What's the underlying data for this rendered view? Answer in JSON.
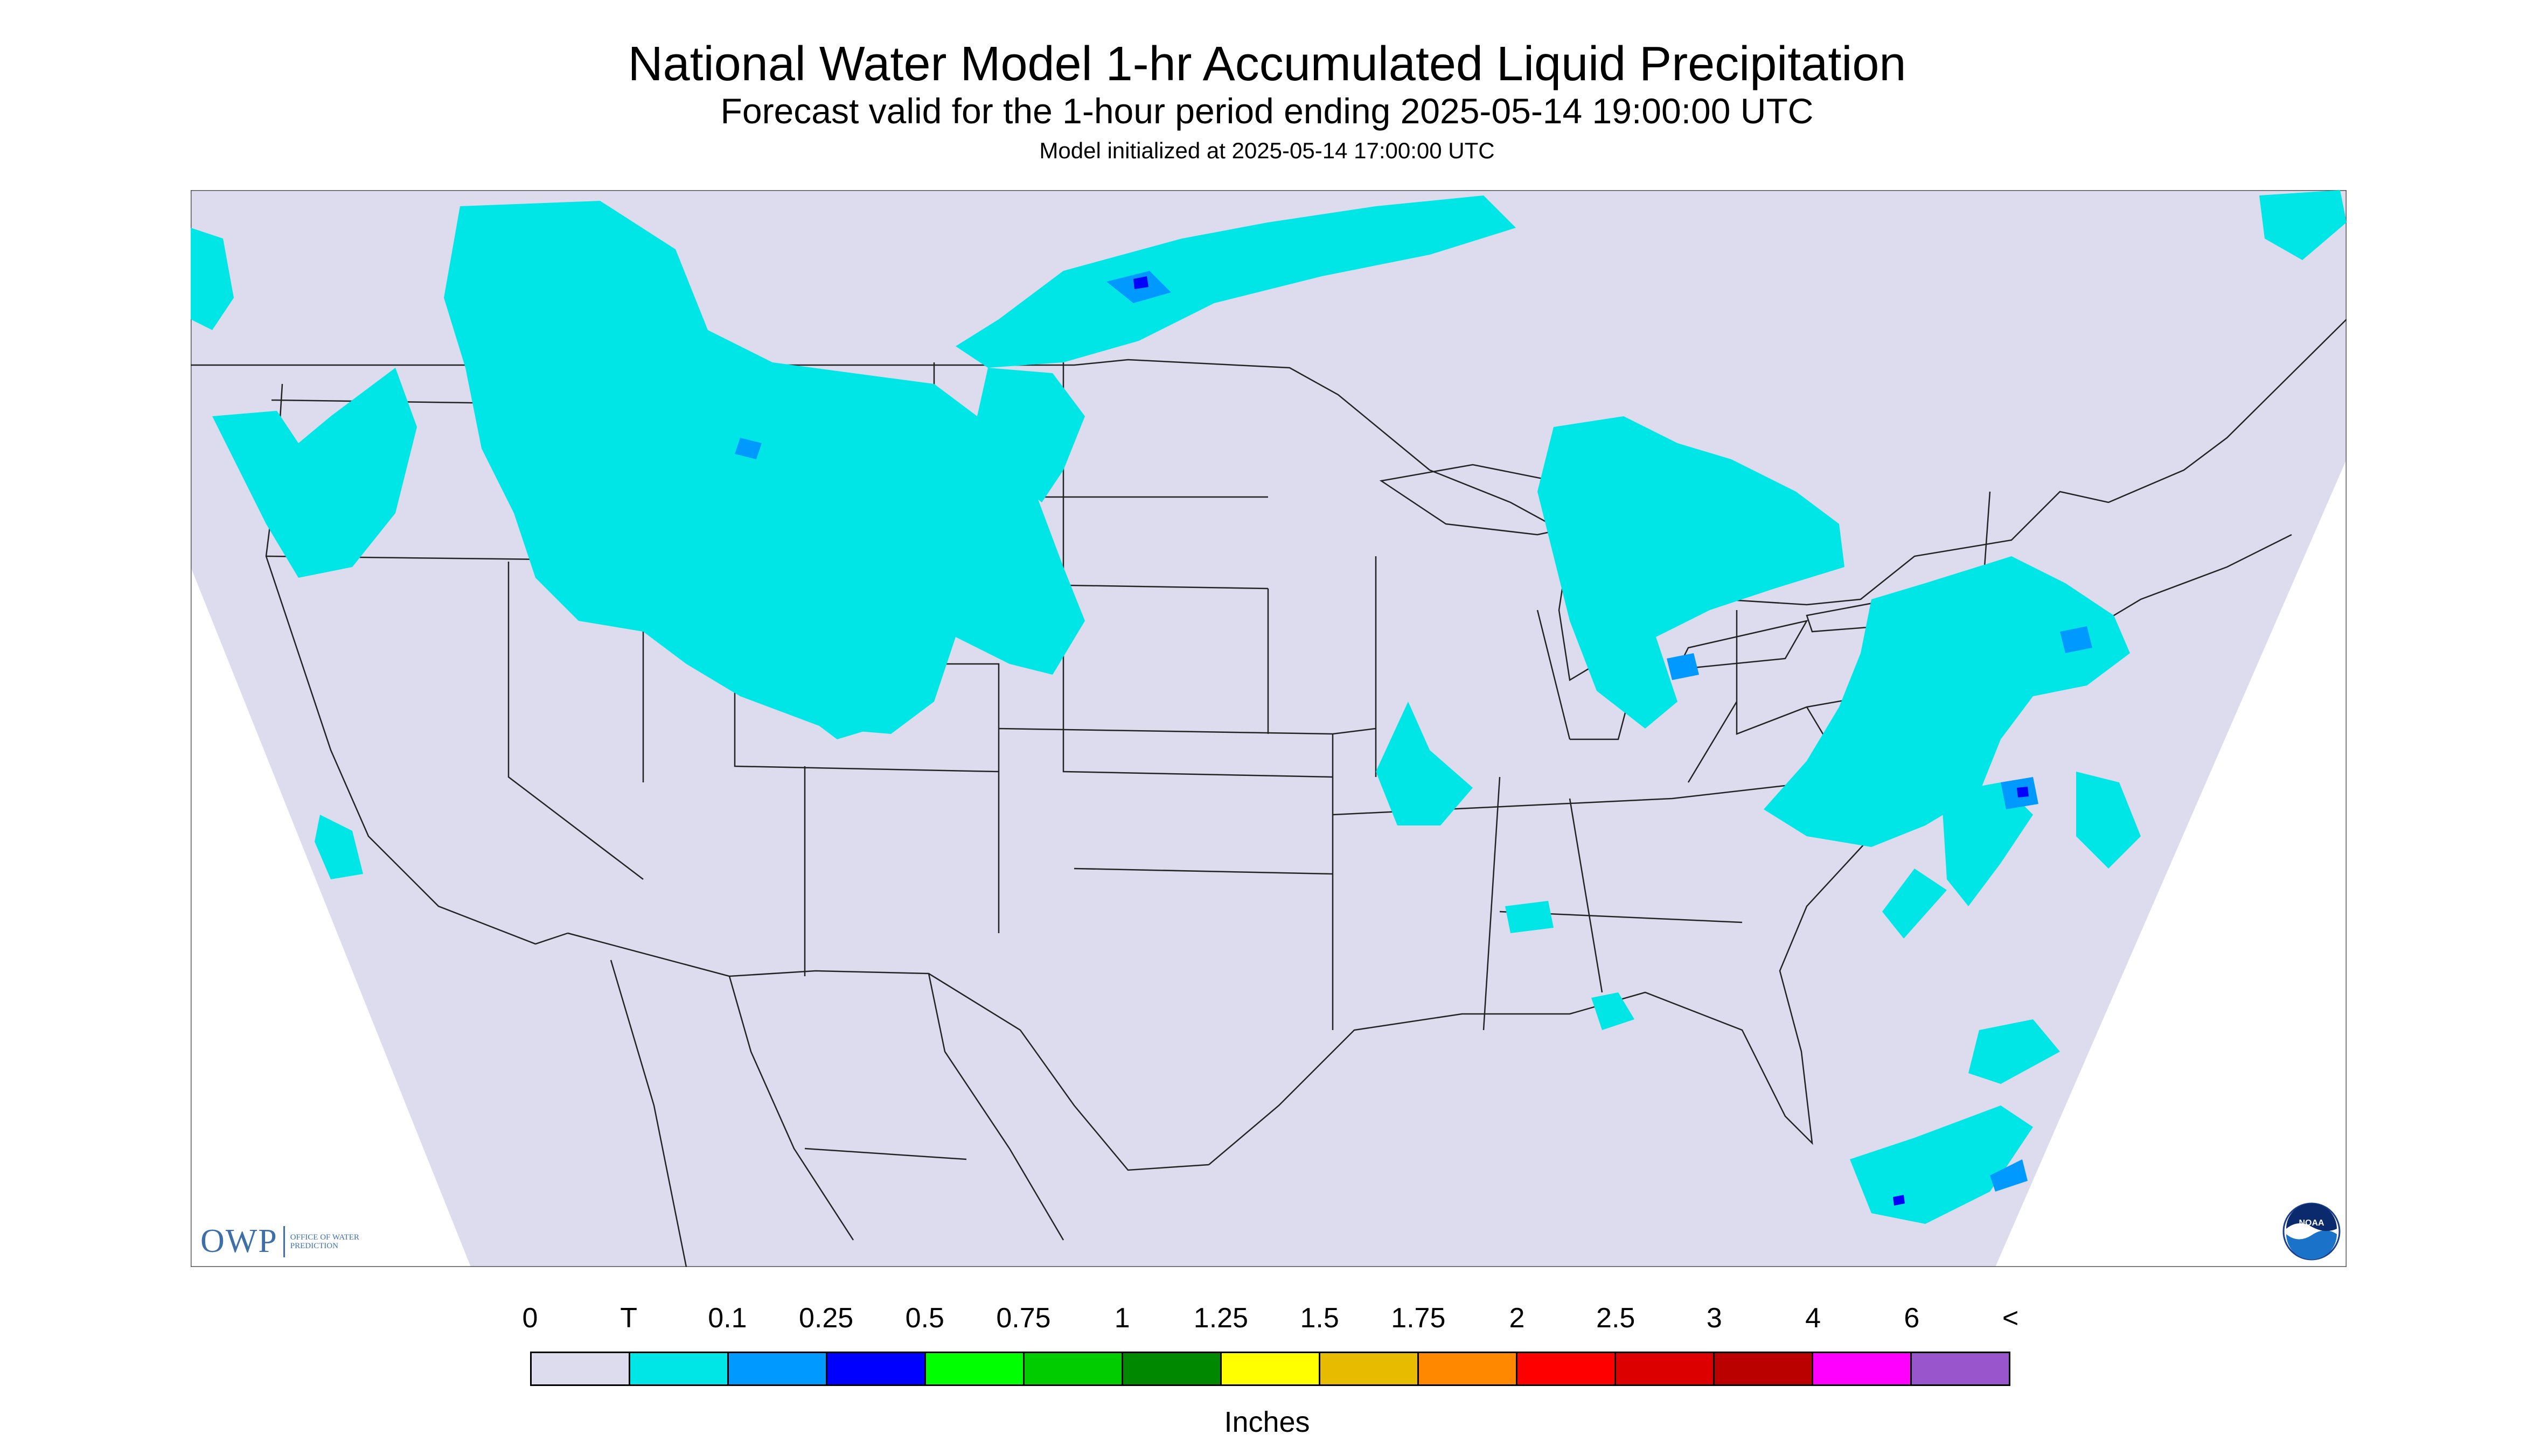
{
  "header": {
    "title": "National Water Model 1-hr Accumulated Liquid Precipitation",
    "subtitle": "Forecast valid for the 1-hour period ending 2025-05-14 19:00:00 UTC",
    "init": "Model initialized at 2025-05-14 17:00:00 UTC"
  },
  "colors": {
    "background": "#dcdcee",
    "land": "#dcdcee",
    "borders": "#222222",
    "trace": "#00e6e6",
    "light": "#0099ff",
    "moderate": "#0000ff"
  },
  "legend": {
    "units": "Inches",
    "ticks": [
      "0",
      "T",
      "0.1",
      "0.25",
      "0.5",
      "0.75",
      "1",
      "1.25",
      "1.5",
      "1.75",
      "2",
      "2.5",
      "3",
      "4",
      "6",
      "<"
    ],
    "colors": [
      "#dcdcee",
      "#00e6e6",
      "#0099ff",
      "#0000ff",
      "#00ff00",
      "#00cc00",
      "#008800",
      "#ffff00",
      "#e6bb00",
      "#ff8800",
      "#ff0000",
      "#dd0000",
      "#bb0000",
      "#ff00ff",
      "#9955cc"
    ]
  },
  "logos": {
    "owp_mark": "OWP",
    "owp_text": "OFFICE OF WATER PREDICTION",
    "noaa_text": "NOAA"
  },
  "map": {
    "region": "CONUS",
    "icons": [
      "owp-logo-icon",
      "noaa-logo-icon"
    ]
  }
}
